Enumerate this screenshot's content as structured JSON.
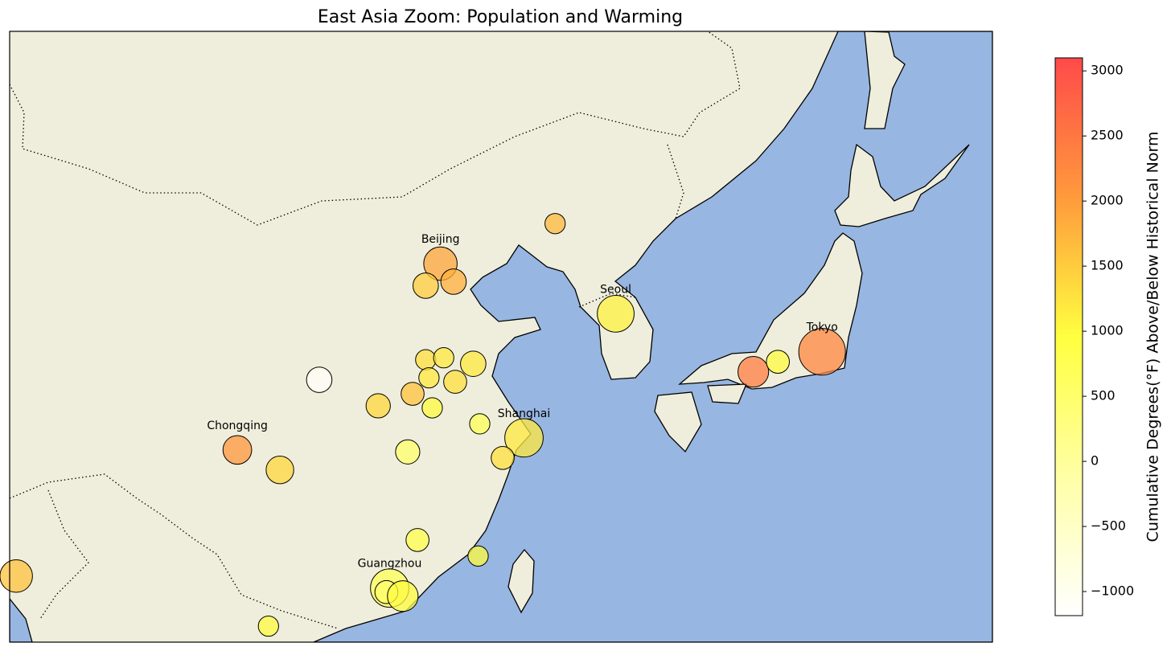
{
  "chart_data": {
    "type": "bubble-map",
    "title": "East Asia Zoom: Population and Warming",
    "colorbar_label": "Cumulative Degrees(°F) Above/Below Historical Norm",
    "xlim": [
      90,
      150
    ],
    "ylim": [
      21,
      51.5
    ],
    "clim": [
      -1185,
      3100
    ],
    "colormap": [
      "#ffffff",
      "#ffffa6",
      "#ffff40",
      "#ff9a3c",
      "#ff4a4a"
    ],
    "cbar_ticks": [
      {
        "value": -1000,
        "label": "−1000"
      },
      {
        "value": -500,
        "label": "−500"
      },
      0,
      500,
      1000,
      1500,
      2000,
      2500,
      3000
    ],
    "points": {
      "lon": [
        123.3,
        116.3,
        115.4,
        117.1,
        127.0,
        139.6,
        135.4,
        136.9,
        108.9,
        115.4,
        116.5,
        118.3,
        115.6,
        117.2,
        112.5,
        114.6,
        115.8,
        118.7,
        121.4,
        103.9,
        106.5,
        114.3,
        120.1,
        114.9,
        118.6,
        113.2,
        113.0,
        114.0,
        90.4,
        105.8
      ],
      "lat": [
        41.9,
        39.9,
        38.8,
        39.0,
        37.4,
        35.5,
        34.5,
        35.0,
        34.1,
        35.1,
        35.2,
        34.9,
        34.2,
        34.0,
        32.8,
        33.4,
        32.7,
        31.9,
        31.2,
        30.6,
        29.6,
        30.5,
        30.2,
        26.1,
        25.3,
        23.7,
        23.5,
        23.3,
        24.3,
        21.8
      ],
      "values": [
        1700,
        1900,
        1500,
        1800,
        1100,
        2300,
        2400,
        1000,
        -1100,
        1300,
        1200,
        1200,
        1200,
        1300,
        1400,
        1600,
        1000,
        700,
        1200,
        2100,
        1400,
        500,
        1300,
        800,
        1000,
        700,
        500,
        1000,
        1600,
        1000
      ],
      "sizes": [
        7,
        19,
        11,
        11,
        23,
        37,
        16,
        9,
        11,
        7,
        7,
        11,
        7,
        9,
        10,
        9,
        7,
        7,
        25,
        14,
        13,
        10,
        9,
        9,
        7,
        25,
        9,
        16,
        18,
        7
      ],
      "labels": [
        null,
        "Beijing",
        null,
        null,
        "Seoul",
        "Tokyo",
        null,
        null,
        null,
        null,
        null,
        null,
        null,
        null,
        null,
        null,
        null,
        null,
        "Shanghai",
        "Chongqing",
        null,
        null,
        null,
        null,
        null,
        "Guangzhou",
        null,
        null,
        null,
        null
      ]
    }
  }
}
